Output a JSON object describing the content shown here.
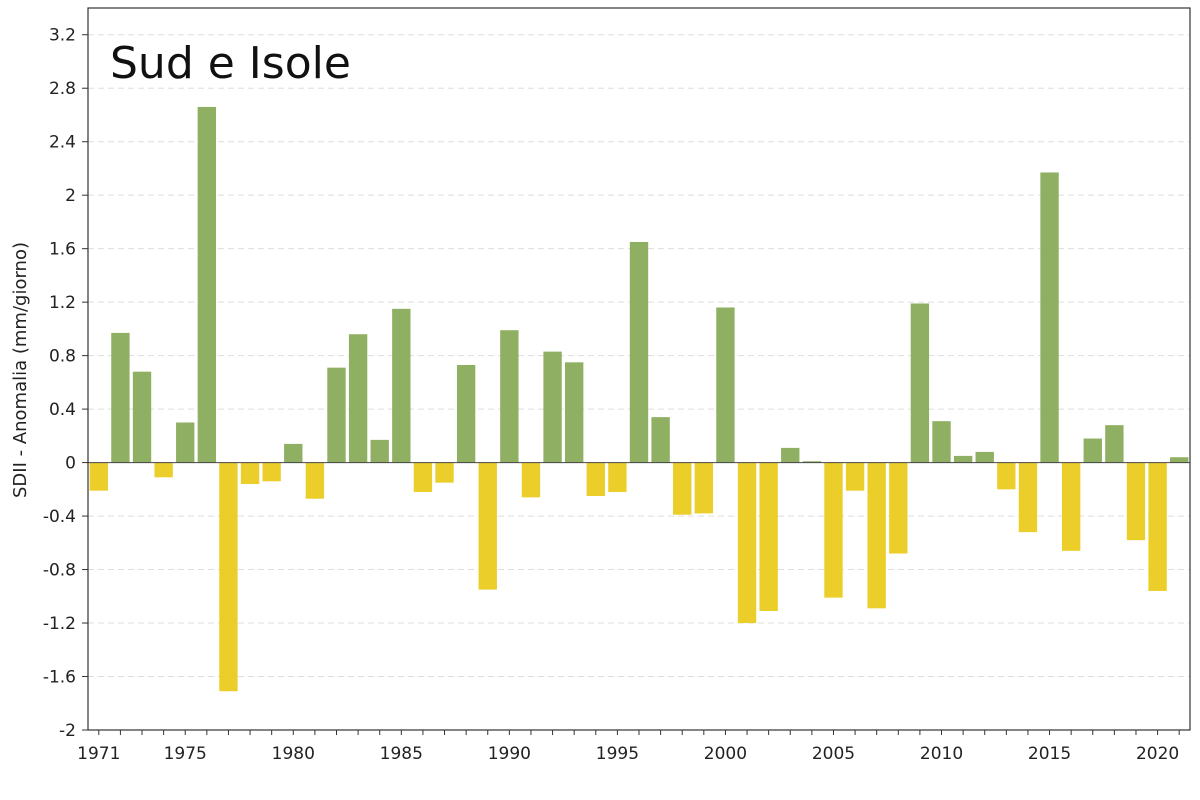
{
  "chart_data": {
    "type": "bar",
    "title": "Sud e Isole",
    "ylabel": "SDII - Anomalia (mm/giorno)",
    "xlabel": "",
    "ylim": [
      -2,
      3.4
    ],
    "yticks": [
      "3.2",
      "2.8",
      "2.4",
      "2",
      "1.6",
      "1.2",
      "0.8",
      "0.4",
      "0",
      "-0.4",
      "-0.8",
      "-1.2",
      "-1.6",
      "-2"
    ],
    "xticks": [
      "1971",
      "1975",
      "1980",
      "1985",
      "1990",
      "1995",
      "2000",
      "2005",
      "2010",
      "2015",
      "2020"
    ],
    "grid": "horizontal-dashed",
    "legend": "none",
    "colors": {
      "positive": "#8fb063",
      "negative": "#ecce2a",
      "grid": "#dddddd",
      "axis": "#333333"
    },
    "categories": [
      1971,
      1972,
      1973,
      1974,
      1975,
      1976,
      1977,
      1978,
      1979,
      1980,
      1981,
      1982,
      1983,
      1984,
      1985,
      1986,
      1987,
      1988,
      1989,
      1990,
      1991,
      1992,
      1993,
      1994,
      1995,
      1996,
      1997,
      1998,
      1999,
      2000,
      2001,
      2002,
      2003,
      2004,
      2005,
      2006,
      2007,
      2008,
      2009,
      2010,
      2011,
      2012,
      2013,
      2014,
      2015,
      2016,
      2017,
      2018,
      2019,
      2020,
      2021
    ],
    "values": [
      -0.21,
      0.97,
      0.68,
      -0.11,
      0.3,
      2.66,
      -1.71,
      -0.16,
      -0.14,
      0.14,
      -0.27,
      0.71,
      0.96,
      0.17,
      1.15,
      -0.22,
      -0.15,
      0.73,
      -0.95,
      0.99,
      -0.26,
      0.83,
      0.75,
      -0.25,
      -0.22,
      1.65,
      0.34,
      -0.39,
      -0.38,
      1.16,
      -1.2,
      -1.11,
      0.11,
      0.01,
      -1.01,
      -0.21,
      -1.09,
      -0.68,
      1.19,
      0.31,
      0.05,
      0.08,
      -0.2,
      -0.52,
      2.17,
      -0.66,
      0.18,
      0.28,
      -0.58,
      -0.96,
      0.04
    ]
  }
}
